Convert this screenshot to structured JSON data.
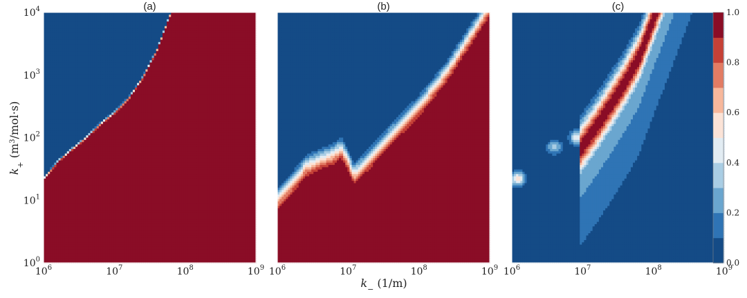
{
  "chart_data": [
    {
      "type": "heatmap",
      "panel_label": "(a)",
      "x_scale": "log",
      "y_scale": "log",
      "xlim": [
        1000000,
        1000000000
      ],
      "ylim": [
        1,
        10000
      ],
      "x_ticks": [
        {
          "value": 1000000,
          "base": "10",
          "exp": "6"
        },
        {
          "value": 10000000,
          "base": "10",
          "exp": "7"
        },
        {
          "value": 100000000,
          "base": "10",
          "exp": "8"
        },
        {
          "value": 1000000000,
          "base": "10",
          "exp": "9"
        }
      ],
      "y_ticks": [
        {
          "value": 1,
          "base": "10",
          "exp": "0"
        },
        {
          "value": 10,
          "base": "10",
          "exp": "1"
        },
        {
          "value": 100,
          "base": "10",
          "exp": "2"
        },
        {
          "value": 1000,
          "base": "10",
          "exp": "3"
        },
        {
          "value": 10000,
          "base": "10",
          "exp": "4"
        }
      ],
      "ylabel_main": "k",
      "ylabel_sub": "+",
      "ylabel_unit": " (m",
      "ylabel_unit_sup": "3",
      "ylabel_unit_rest": "/mol·s)",
      "transition_boundary": {
        "x": [
          1000000,
          1600000,
          2500000,
          4000000,
          6300000,
          10000000,
          16000000,
          25000000,
          40000000,
          63000000
        ],
        "y": [
          22,
          42,
          65,
          100,
          165,
          250,
          430,
          900,
          2500,
          10000
        ]
      },
      "transition_width_decades": 0.08,
      "peak_value": 1.0
    },
    {
      "type": "heatmap",
      "panel_label": "(b)",
      "x_scale": "log",
      "y_scale": "log",
      "xlim": [
        1000000,
        1000000000
      ],
      "ylim": [
        1,
        10000
      ],
      "x_ticks": [
        {
          "value": 1000000,
          "base": "10",
          "exp": "6"
        },
        {
          "value": 10000000,
          "base": "10",
          "exp": "7"
        },
        {
          "value": 100000000,
          "base": "10",
          "exp": "8"
        },
        {
          "value": 1000000000,
          "base": "10",
          "exp": "9"
        }
      ],
      "xlabel_main": "k",
      "xlabel_sub": "−",
      "xlabel_unit": " (1/m)",
      "transition_boundary": {
        "x": [
          1000000,
          1600000,
          2500000,
          4000000,
          6300000,
          8000000,
          10000000,
          12000000,
          20000000,
          40000000,
          100000000,
          250000000,
          630000000
        ],
        "y": [
          18,
          32,
          60,
          78,
          95,
          120,
          75,
          45,
          80,
          190,
          550,
          2000,
          10000
        ]
      },
      "transition_width_decades": 0.55,
      "peak_value": 1.0
    },
    {
      "type": "heatmap",
      "panel_label": "(c)",
      "x_scale": "log",
      "y_scale": "log",
      "xlim": [
        1000000,
        1000000000
      ],
      "ylim": [
        1,
        10000
      ],
      "x_ticks": [
        {
          "value": 1000000,
          "base": "10",
          "exp": "6"
        },
        {
          "value": 10000000,
          "base": "10",
          "exp": "7"
        },
        {
          "value": 100000000,
          "base": "10",
          "exp": "8"
        },
        {
          "value": 1000000000,
          "base": "10",
          "exp": "9"
        }
      ],
      "ridge": {
        "x": [
          10000000,
          16000000,
          25000000,
          40000000,
          63000000,
          100000000
        ],
        "y": [
          95,
          200,
          430,
          1000,
          2500,
          10000
        ]
      },
      "ridge_width_decades": 0.45,
      "peak_value": 1.0,
      "isolated_spots": [
        {
          "x": 1200000,
          "y": 22,
          "value": 0.55
        },
        {
          "x": 4000000,
          "y": 70,
          "value": 0.35
        },
        {
          "x": 8500000,
          "y": 100,
          "value": 0.5
        }
      ]
    }
  ],
  "colorbar": {
    "levels": [
      0.0,
      0.1,
      0.2,
      0.3,
      0.4,
      0.5,
      0.6,
      0.7,
      0.8,
      0.9,
      1.0
    ],
    "colors": [
      "#144b86",
      "#2f74b5",
      "#6aa6cf",
      "#a9cde4",
      "#e2ecf3",
      "#fbe3d7",
      "#f7b89c",
      "#e27c64",
      "#c54137",
      "#8a0d26"
    ],
    "tick_labels": [
      "0.0",
      "0.2",
      "0.4",
      "0.6",
      "0.8",
      "1.0"
    ],
    "tick_values": [
      0.0,
      0.2,
      0.4,
      0.6,
      0.8,
      1.0
    ]
  }
}
